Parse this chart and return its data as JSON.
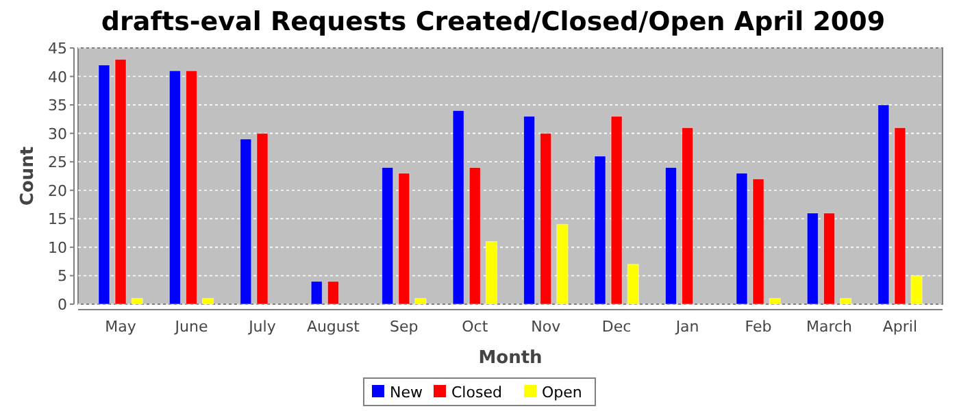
{
  "chart_data": {
    "type": "bar",
    "title": "drafts-eval Requests Created/Closed/Open April 2009",
    "xlabel": "Month",
    "ylabel": "Count",
    "categories": [
      "May",
      "June",
      "July",
      "August",
      "Sep",
      "Oct",
      "Nov",
      "Dec",
      "Jan",
      "Feb",
      "March",
      "April"
    ],
    "series": [
      {
        "name": "New",
        "color": "#0000ff",
        "values": [
          42,
          41,
          29,
          4,
          24,
          34,
          33,
          26,
          24,
          23,
          16,
          35
        ]
      },
      {
        "name": "Closed",
        "color": "#ff0000",
        "values": [
          43,
          41,
          30,
          4,
          23,
          24,
          30,
          33,
          31,
          22,
          16,
          31
        ]
      },
      {
        "name": "Open",
        "color": "#ffff00",
        "values": [
          1,
          1,
          0,
          0,
          1,
          11,
          14,
          7,
          0,
          1,
          1,
          5
        ]
      }
    ],
    "ylim": [
      0,
      45
    ],
    "yticks": [
      0,
      5,
      10,
      15,
      20,
      25,
      30,
      35,
      40,
      45
    ],
    "grid": "y",
    "legend": "bottom"
  }
}
